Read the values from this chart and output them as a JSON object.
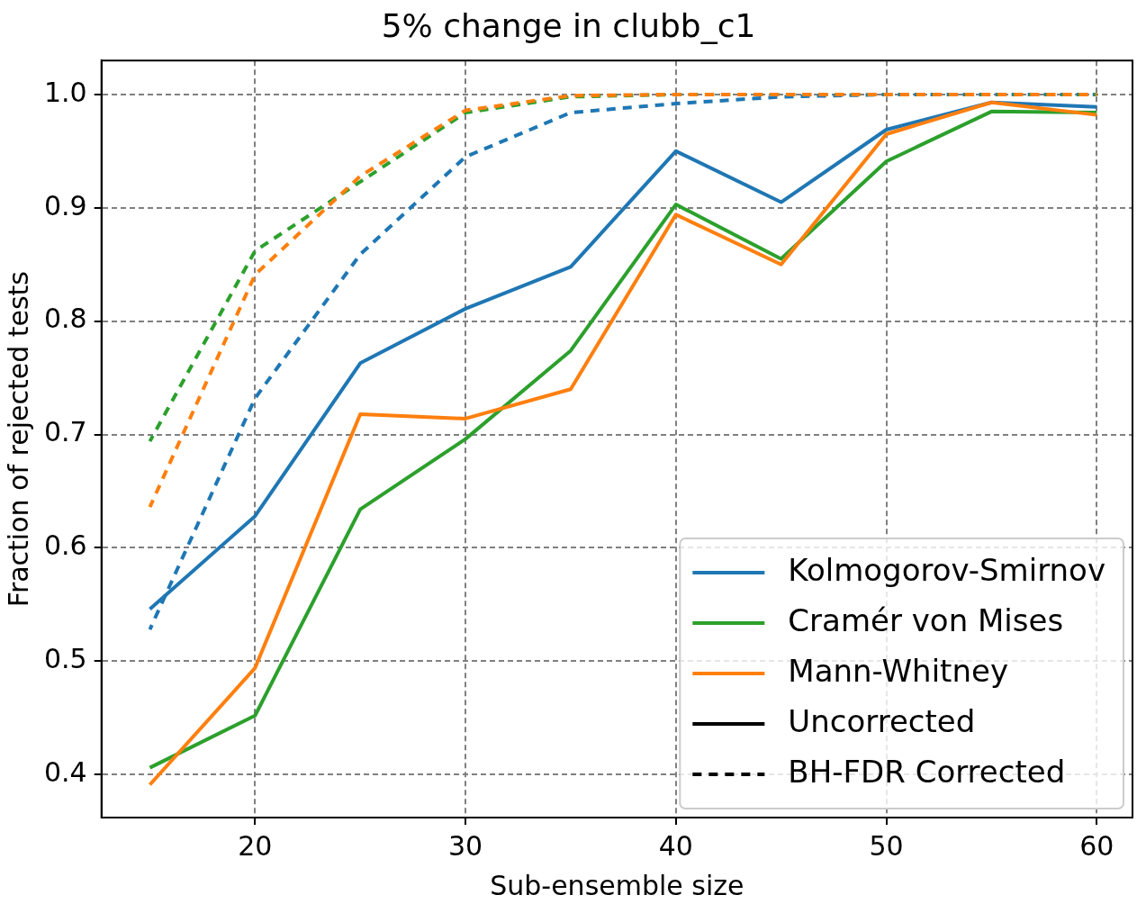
{
  "chart_data": {
    "type": "line",
    "title": "5% change in clubb_c1",
    "xlabel": "Sub-ensemble size",
    "ylabel": "Fraction of rejected tests",
    "x": [
      15,
      20,
      25,
      30,
      35,
      40,
      45,
      50,
      55,
      60
    ],
    "xlim": [
      12.7,
      61.7
    ],
    "xticks": [
      20,
      30,
      40,
      50,
      60
    ],
    "ylim": [
      0.362,
      1.03
    ],
    "yticks": [
      {
        "value": 0.4,
        "label": "0.4"
      },
      {
        "value": 0.5,
        "label": "0.5"
      },
      {
        "value": 0.6,
        "label": "0.6"
      },
      {
        "value": 0.7,
        "label": "0.7"
      },
      {
        "value": 0.8,
        "label": "0.8"
      },
      {
        "value": 0.9,
        "label": "0.9"
      },
      {
        "value": 1.0,
        "label": "1.0"
      }
    ],
    "grid": true,
    "legend": "bottom right",
    "marker": "none",
    "annotations": [
      "Uncorrected",
      "BH-FDR Corrected"
    ],
    "series": [
      {
        "name": "Kolmogorov-Smirnov",
        "color": "#1f77b4",
        "line_style": "solid",
        "values": [
          0.546,
          0.628,
          0.763,
          0.811,
          0.848,
          0.95,
          0.905,
          0.969,
          0.993,
          0.989
        ]
      },
      {
        "name": "Cramér von Mises",
        "color": "#2ca02c",
        "line_style": "solid",
        "values": [
          0.406,
          0.452,
          0.634,
          0.696,
          0.774,
          0.903,
          0.855,
          0.941,
          0.985,
          0.984
        ]
      },
      {
        "name": "Mann-Whitney",
        "color": "#ff7f0e",
        "line_style": "solid",
        "values": [
          0.391,
          0.494,
          0.718,
          0.714,
          0.74,
          0.894,
          0.85,
          0.965,
          0.993,
          0.982
        ]
      },
      {
        "color": "#1f77b4",
        "line_style": "dashed",
        "values": [
          0.528,
          0.732,
          0.859,
          0.945,
          0.984,
          0.992,
          0.998,
          1.0,
          1.0,
          1.0
        ]
      },
      {
        "color": "#2ca02c",
        "line_style": "dashed",
        "values": [
          0.694,
          0.862,
          0.923,
          0.984,
          0.998,
          1.0,
          1.0,
          1.0,
          1.0,
          1.0
        ]
      },
      {
        "color": "#ff7f0e",
        "line_style": "dashed",
        "values": [
          0.636,
          0.841,
          0.928,
          0.986,
          0.999,
          1.0,
          1.0,
          1.0,
          1.0,
          1.0
        ]
      }
    ]
  }
}
